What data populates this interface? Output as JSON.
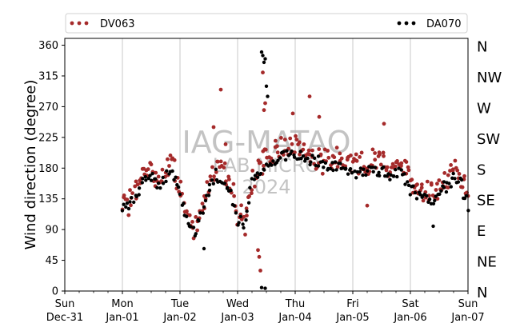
{
  "chart_data": {
    "type": "scatter",
    "ylabel": "Wind direction (degree)",
    "xlim": [
      "2023-12-31T00:00",
      "2024-01-07T00:00"
    ],
    "ylim": [
      0,
      370
    ],
    "yticks": [
      0,
      45,
      90,
      135,
      180,
      225,
      270,
      315,
      360
    ],
    "compass_ticks": [
      {
        "value": 0,
        "label": "N"
      },
      {
        "value": 45,
        "label": "NE"
      },
      {
        "value": 90,
        "label": "E"
      },
      {
        "value": 135,
        "label": "SE"
      },
      {
        "value": 180,
        "label": "S"
      },
      {
        "value": 225,
        "label": "SW"
      },
      {
        "value": 270,
        "label": "W"
      },
      {
        "value": 315,
        "label": "NW"
      },
      {
        "value": 360,
        "label": "N"
      }
    ],
    "xticks": [
      {
        "date": "2023-12-31",
        "line1": "Sun",
        "line2": "Dec-31"
      },
      {
        "date": "2024-01-01",
        "line1": "Mon",
        "line2": "Jan-01"
      },
      {
        "date": "2024-01-02",
        "line1": "Tue",
        "line2": "Jan-02"
      },
      {
        "date": "2024-01-03",
        "line1": "Wed",
        "line2": "Jan-03"
      },
      {
        "date": "2024-01-04",
        "line1": "Thu",
        "line2": "Jan-04"
      },
      {
        "date": "2024-01-05",
        "line1": "Fri",
        "line2": "Jan-05"
      },
      {
        "date": "2024-01-06",
        "line1": "Sat",
        "line2": "Jan-06"
      },
      {
        "date": "2024-01-07",
        "line1": "Sun",
        "line2": "Jan-07"
      }
    ],
    "grid": "vertical",
    "legend_position": "top",
    "watermark": [
      "IAG-MATAO",
      "LAB MICRO",
      "2024"
    ],
    "series": [
      {
        "name": "DV063",
        "color": "#a52a2a",
        "trend": [
          [
            "2024-01-01T00:00",
            120
          ],
          [
            "2024-01-01T03:00",
            132
          ],
          [
            "2024-01-01T06:00",
            150
          ],
          [
            "2024-01-01T09:00",
            172
          ],
          [
            "2024-01-01T12:00",
            178
          ],
          [
            "2024-01-01T15:00",
            162
          ],
          [
            "2024-01-01T18:00",
            178
          ],
          [
            "2024-01-01T21:00",
            185
          ],
          [
            "2024-01-02T00:00",
            150
          ],
          [
            "2024-01-02T03:00",
            110
          ],
          [
            "2024-01-02T06:00",
            92
          ],
          [
            "2024-01-02T09:00",
            125
          ],
          [
            "2024-01-02T12:00",
            155
          ],
          [
            "2024-01-02T15:00",
            185
          ],
          [
            "2024-01-02T18:00",
            170
          ],
          [
            "2024-01-02T21:00",
            160
          ],
          [
            "2024-01-03T00:00",
            115
          ],
          [
            "2024-01-03T03:00",
            100
          ],
          [
            "2024-01-03T06:00",
            160
          ],
          [
            "2024-01-03T09:00",
            180
          ],
          [
            "2024-01-03T12:00",
            195
          ],
          [
            "2024-01-03T15:00",
            200
          ],
          [
            "2024-01-03T18:00",
            210
          ],
          [
            "2024-01-03T21:00",
            220
          ],
          [
            "2024-01-04T00:00",
            215
          ],
          [
            "2024-01-04T06:00",
            200
          ],
          [
            "2024-01-04T12:00",
            190
          ],
          [
            "2024-01-04T18:00",
            195
          ],
          [
            "2024-01-05T00:00",
            190
          ],
          [
            "2024-01-05T06:00",
            185
          ],
          [
            "2024-01-05T12:00",
            200
          ],
          [
            "2024-01-05T15:00",
            178
          ],
          [
            "2024-01-05T18:00",
            190
          ],
          [
            "2024-01-05T21:00",
            185
          ],
          [
            "2024-01-06T00:00",
            160
          ],
          [
            "2024-01-06T06:00",
            150
          ],
          [
            "2024-01-06T09:00",
            140
          ],
          [
            "2024-01-06T12:00",
            150
          ],
          [
            "2024-01-06T15:00",
            165
          ],
          [
            "2024-01-06T18:00",
            180
          ],
          [
            "2024-01-06T21:00",
            165
          ],
          [
            "2024-01-07T00:00",
            140
          ]
        ],
        "outliers": [
          [
            "2024-01-02T17:00",
            295
          ],
          [
            "2024-01-02T14:00",
            240
          ],
          [
            "2024-01-03T11:00",
            265
          ],
          [
            "2024-01-03T11:30",
            275
          ],
          [
            "2024-01-03T10:30",
            320
          ],
          [
            "2024-01-03T09:00",
            50
          ],
          [
            "2024-01-03T08:30",
            60
          ],
          [
            "2024-01-03T09:30",
            30
          ],
          [
            "2024-01-04T06:00",
            285
          ],
          [
            "2024-01-05T06:00",
            125
          ],
          [
            "2024-01-05T13:00",
            245
          ],
          [
            "2024-01-02T19:00",
            215
          ],
          [
            "2024-01-03T23:00",
            260
          ],
          [
            "2024-01-04T10:00",
            255
          ]
        ]
      },
      {
        "name": "DA070",
        "color": "#000000",
        "trend": [
          [
            "2024-01-01T00:00",
            118
          ],
          [
            "2024-01-01T03:00",
            125
          ],
          [
            "2024-01-01T06:00",
            140
          ],
          [
            "2024-01-01T09:00",
            165
          ],
          [
            "2024-01-01T12:00",
            170
          ],
          [
            "2024-01-01T15:00",
            158
          ],
          [
            "2024-01-01T18:00",
            168
          ],
          [
            "2024-01-01T21:00",
            170
          ],
          [
            "2024-01-02T00:00",
            140
          ],
          [
            "2024-01-02T03:00",
            100
          ],
          [
            "2024-01-02T06:00",
            85
          ],
          [
            "2024-01-02T09:00",
            115
          ],
          [
            "2024-01-02T12:00",
            150
          ],
          [
            "2024-01-02T15:00",
            170
          ],
          [
            "2024-01-02T18:00",
            155
          ],
          [
            "2024-01-02T21:00",
            150
          ],
          [
            "2024-01-03T00:00",
            105
          ],
          [
            "2024-01-03T03:00",
            95
          ],
          [
            "2024-01-03T06:00",
            165
          ],
          [
            "2024-01-03T09:00",
            175
          ],
          [
            "2024-01-03T12:00",
            185
          ],
          [
            "2024-01-03T15:00",
            190
          ],
          [
            "2024-01-03T18:00",
            195
          ],
          [
            "2024-01-03T21:00",
            200
          ],
          [
            "2024-01-04T00:00",
            195
          ],
          [
            "2024-01-04T06:00",
            190
          ],
          [
            "2024-01-04T12:00",
            185
          ],
          [
            "2024-01-04T18:00",
            180
          ],
          [
            "2024-01-05T00:00",
            175
          ],
          [
            "2024-01-05T06:00",
            172
          ],
          [
            "2024-01-05T12:00",
            178
          ],
          [
            "2024-01-05T15:00",
            165
          ],
          [
            "2024-01-05T18:00",
            175
          ],
          [
            "2024-01-05T21:00",
            170
          ],
          [
            "2024-01-06T00:00",
            150
          ],
          [
            "2024-01-06T06:00",
            140
          ],
          [
            "2024-01-06T09:00",
            130
          ],
          [
            "2024-01-06T12:00",
            140
          ],
          [
            "2024-01-06T15:00",
            155
          ],
          [
            "2024-01-06T18:00",
            165
          ],
          [
            "2024-01-06T21:00",
            158
          ],
          [
            "2024-01-07T00:00",
            125
          ]
        ],
        "outliers": [
          [
            "2024-01-03T10:00",
            350
          ],
          [
            "2024-01-03T10:30",
            345
          ],
          [
            "2024-01-03T11:30",
            340
          ],
          [
            "2024-01-03T11:00",
            335
          ],
          [
            "2024-01-03T12:00",
            300
          ],
          [
            "2024-01-03T12:30",
            285
          ],
          [
            "2024-01-03T10:00",
            5
          ],
          [
            "2024-01-03T11:30",
            4
          ],
          [
            "2024-01-02T10:00",
            62
          ],
          [
            "2024-01-02T12:00",
            140
          ],
          [
            "2024-01-06T09:30",
            95
          ],
          [
            "2024-01-06T14:00",
            160
          ]
        ]
      }
    ]
  }
}
